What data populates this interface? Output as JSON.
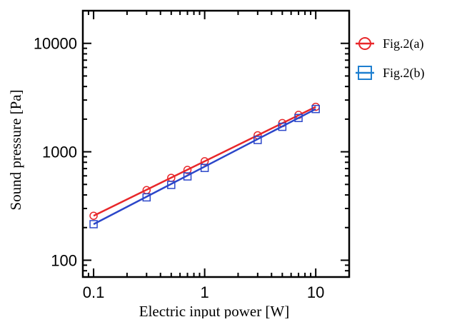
{
  "chart_data": {
    "type": "scatter",
    "xscale": "log",
    "yscale": "log",
    "xlim": [
      0.08,
      20
    ],
    "ylim": [
      70,
      20000
    ],
    "xlabel": "Electric input power [W]",
    "ylabel": "Sound pressure [Pa]",
    "x_tick_labels": [
      "0.1",
      "1",
      "10"
    ],
    "y_tick_labels": [
      "100",
      "1000",
      "10000"
    ],
    "grid": false,
    "legend": "right",
    "series": [
      {
        "name": "Fig.2(a)",
        "marker": "circle",
        "color": "#e8272a",
        "x": [
          0.1,
          0.3,
          0.5,
          0.7,
          1,
          3,
          5,
          7,
          10
        ],
        "y": [
          257,
          443,
          575,
          680,
          817,
          1420,
          1840,
          2190,
          2600
        ]
      },
      {
        "name": "Fig.2(b)",
        "marker": "square",
        "color": "#2b46c9",
        "x": [
          0.1,
          0.3,
          0.5,
          0.7,
          1,
          3,
          5,
          7,
          10
        ],
        "y": [
          215,
          380,
          495,
          593,
          710,
          1285,
          1700,
          2050,
          2480
        ]
      }
    ],
    "legend_line_colors": [
      "#e8272a",
      "#1e7fd0"
    ]
  }
}
